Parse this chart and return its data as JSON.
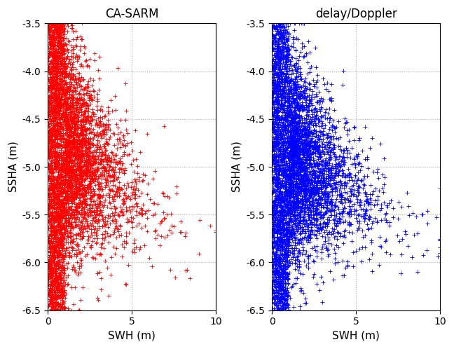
{
  "title_left": "CA-SARM",
  "title_right": "delay/Doppler",
  "xlabel": "SWH (m)",
  "ylabel": "SSHA (m)",
  "xlim": [
    0,
    10
  ],
  "ylim": [
    -6.5,
    -3.5
  ],
  "xticks": [
    0,
    5,
    10
  ],
  "yticks": [
    -6.5,
    -6.0,
    -5.5,
    -5.0,
    -4.5,
    -4.0,
    -3.5
  ],
  "color_left": "red",
  "color_right": "blue",
  "marker": "+",
  "markersize": 4,
  "seed": 42,
  "n_points": 5000,
  "background_color": "white",
  "grid_color": "#aaaaaa",
  "grid_style": ":"
}
